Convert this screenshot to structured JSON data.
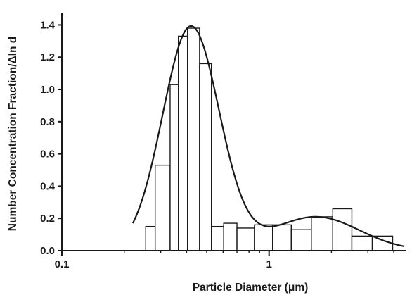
{
  "chart_data": {
    "type": "bar",
    "xscale": "log",
    "xlabel": "Particle Diameter (μm)",
    "ylabel": "Number Concentration Fraction/Δln d",
    "xlim": [
      0.1,
      4.6
    ],
    "ylim": [
      0,
      1.45
    ],
    "x_ticks": [
      {
        "value": 0.1,
        "label": "0.1"
      },
      {
        "value": 1,
        "label": "1"
      }
    ],
    "y_ticks": [
      {
        "value": 0.0,
        "label": "0.0"
      },
      {
        "value": 0.2,
        "label": "0.2"
      },
      {
        "value": 0.4,
        "label": "0.4"
      },
      {
        "value": 0.6,
        "label": "0.6"
      },
      {
        "value": 0.8,
        "label": "0.8"
      },
      {
        "value": 1.0,
        "label": "1.0"
      },
      {
        "value": 1.2,
        "label": "1.2"
      },
      {
        "value": 1.4,
        "label": "1.4"
      }
    ],
    "grid": false,
    "legend": "none",
    "bins": [
      {
        "x0": 0.254,
        "x1": 0.282,
        "value": 0.15
      },
      {
        "x0": 0.282,
        "x1": 0.333,
        "value": 0.53
      },
      {
        "x0": 0.333,
        "x1": 0.365,
        "value": 1.03
      },
      {
        "x0": 0.365,
        "x1": 0.404,
        "value": 1.33
      },
      {
        "x0": 0.404,
        "x1": 0.462,
        "value": 1.38
      },
      {
        "x0": 0.462,
        "x1": 0.527,
        "value": 1.16
      },
      {
        "x0": 0.527,
        "x1": 0.604,
        "value": 0.15
      },
      {
        "x0": 0.604,
        "x1": 0.7,
        "value": 0.17
      },
      {
        "x0": 0.7,
        "x1": 0.85,
        "value": 0.14
      },
      {
        "x0": 0.85,
        "x1": 1.04,
        "value": 0.16
      },
      {
        "x0": 1.04,
        "x1": 1.28,
        "value": 0.16
      },
      {
        "x0": 1.28,
        "x1": 1.6,
        "value": 0.13
      },
      {
        "x0": 1.6,
        "x1": 2.03,
        "value": 0.21
      },
      {
        "x0": 2.03,
        "x1": 2.51,
        "value": 0.26
      },
      {
        "x0": 2.51,
        "x1": 3.15,
        "value": 0.09
      },
      {
        "x0": 3.15,
        "x1": 3.95,
        "value": 0.09
      }
    ],
    "fit_curve": {
      "modes": [
        {
          "amplitude": 1.39,
          "center": 0.42,
          "log_sigma": 0.137
        },
        {
          "amplitude": 0.21,
          "center": 1.68,
          "log_sigma": 0.21
        }
      ],
      "x_range": [
        0.22,
        4.5
      ]
    }
  }
}
